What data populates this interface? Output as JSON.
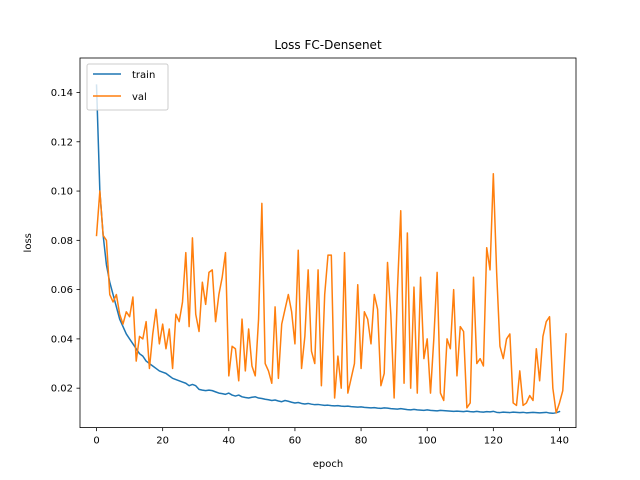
{
  "chart_data": {
    "type": "line",
    "title": "Loss FC-Densenet",
    "xlabel": "epoch",
    "ylabel": "loss",
    "xlim": [
      -5,
      145
    ],
    "ylim": [
      0.004,
      0.154
    ],
    "xticks": [
      0,
      20,
      40,
      60,
      80,
      100,
      120,
      140
    ],
    "yticks": [
      0.02,
      0.04,
      0.06,
      0.08,
      0.1,
      0.12,
      0.14
    ],
    "ytick_labels": [
      "0.02",
      "0.04",
      "0.06",
      "0.08",
      "0.10",
      "0.12",
      "0.14"
    ],
    "grid": false,
    "legend": "upper-left",
    "series": [
      {
        "name": "train",
        "color": "#1f77b4",
        "values": [
          0.143,
          0.1,
          0.082,
          0.07,
          0.063,
          0.058,
          0.053,
          0.048,
          0.045,
          0.042,
          0.04,
          0.038,
          0.036,
          0.034,
          0.033,
          0.031,
          0.03,
          0.029,
          0.028,
          0.027,
          0.0265,
          0.026,
          0.025,
          0.024,
          0.0235,
          0.023,
          0.0225,
          0.022,
          0.021,
          0.0215,
          0.021,
          0.0195,
          0.0192,
          0.019,
          0.0192,
          0.019,
          0.0185,
          0.018,
          0.0178,
          0.0175,
          0.018,
          0.0172,
          0.0168,
          0.0172,
          0.0165,
          0.0162,
          0.016,
          0.0163,
          0.0165,
          0.016,
          0.0158,
          0.0155,
          0.0153,
          0.015,
          0.0152,
          0.0148,
          0.0145,
          0.015,
          0.0147,
          0.0143,
          0.014,
          0.0142,
          0.0138,
          0.0136,
          0.0138,
          0.0135,
          0.0133,
          0.0134,
          0.0132,
          0.013,
          0.0131,
          0.0129,
          0.0128,
          0.0129,
          0.0127,
          0.0126,
          0.0127,
          0.0125,
          0.0124,
          0.0123,
          0.0124,
          0.0122,
          0.0121,
          0.012,
          0.0121,
          0.0119,
          0.0118,
          0.012,
          0.0119,
          0.0117,
          0.0116,
          0.0115,
          0.0117,
          0.0115,
          0.0113,
          0.0112,
          0.0114,
          0.0112,
          0.0111,
          0.011,
          0.0112,
          0.011,
          0.0109,
          0.0108,
          0.011,
          0.0109,
          0.0108,
          0.0107,
          0.0106,
          0.0107,
          0.0106,
          0.0105,
          0.0107,
          0.0105,
          0.0104,
          0.0106,
          0.0104,
          0.0103,
          0.0105,
          0.0104,
          0.0106,
          0.0102,
          0.0101,
          0.0103,
          0.0102,
          0.0101,
          0.0103,
          0.0102,
          0.0101,
          0.0102,
          0.01,
          0.0101,
          0.0102,
          0.0101,
          0.01,
          0.0101,
          0.0102,
          0.0099,
          0.0098,
          0.01,
          0.0105
        ]
      },
      {
        "name": "val",
        "color": "#ff7f0e",
        "values": [
          0.082,
          0.1,
          0.082,
          0.08,
          0.058,
          0.055,
          0.058,
          0.05,
          0.046,
          0.051,
          0.049,
          0.057,
          0.031,
          0.041,
          0.04,
          0.047,
          0.028,
          0.042,
          0.052,
          0.038,
          0.046,
          0.036,
          0.044,
          0.028,
          0.05,
          0.047,
          0.055,
          0.075,
          0.045,
          0.081,
          0.05,
          0.043,
          0.063,
          0.054,
          0.067,
          0.068,
          0.047,
          0.058,
          0.065,
          0.075,
          0.025,
          0.037,
          0.036,
          0.023,
          0.048,
          0.027,
          0.044,
          0.029,
          0.025,
          0.048,
          0.095,
          0.03,
          0.027,
          0.022,
          0.053,
          0.024,
          0.046,
          0.052,
          0.058,
          0.051,
          0.038,
          0.076,
          0.028,
          0.041,
          0.068,
          0.035,
          0.03,
          0.068,
          0.021,
          0.058,
          0.074,
          0.074,
          0.016,
          0.033,
          0.02,
          0.075,
          0.018,
          0.024,
          0.03,
          0.062,
          0.028,
          0.051,
          0.048,
          0.038,
          0.058,
          0.052,
          0.021,
          0.026,
          0.071,
          0.05,
          0.016,
          0.06,
          0.092,
          0.022,
          0.083,
          0.02,
          0.061,
          0.018,
          0.065,
          0.032,
          0.04,
          0.018,
          0.04,
          0.067,
          0.018,
          0.015,
          0.04,
          0.036,
          0.06,
          0.025,
          0.045,
          0.043,
          0.012,
          0.014,
          0.065,
          0.03,
          0.032,
          0.029,
          0.077,
          0.068,
          0.107,
          0.067,
          0.037,
          0.032,
          0.04,
          0.042,
          0.014,
          0.013,
          0.027,
          0.013,
          0.014,
          0.017,
          0.015,
          0.036,
          0.023,
          0.041,
          0.047,
          0.049,
          0.02,
          0.01,
          0.014,
          0.019,
          0.042
        ]
      }
    ]
  }
}
